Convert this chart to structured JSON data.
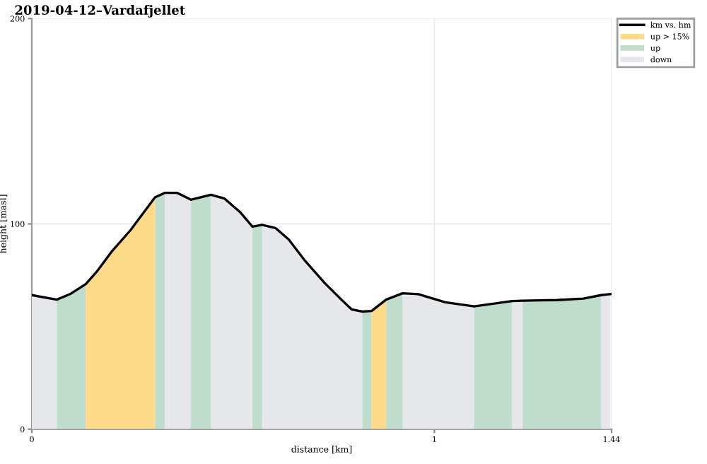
{
  "chart_data": {
    "type": "area",
    "title": "2019-04-12–Vardafjellet",
    "xlabel": "distance [km]",
    "ylabel": "height [masl]",
    "xlim": [
      0,
      1.44
    ],
    "ylim": [
      0,
      200
    ],
    "xticks": [
      0,
      1,
      1.44
    ],
    "yticks": [
      0,
      100,
      200
    ],
    "grid": true,
    "legend": "top right",
    "series": [
      {
        "name": "km vs. hm",
        "type": "line",
        "color": "#000000",
        "x": [
          0,
          0.062,
          0.095,
          0.134,
          0.162,
          0.2,
          0.245,
          0.306,
          0.33,
          0.361,
          0.395,
          0.445,
          0.478,
          0.517,
          0.548,
          0.572,
          0.605,
          0.638,
          0.677,
          0.727,
          0.769,
          0.794,
          0.821,
          0.844,
          0.88,
          0.921,
          0.96,
          1.027,
          1.099,
          1.193,
          1.219,
          1.304,
          1.37,
          1.414,
          1.437
        ],
        "values": [
          65.3,
          63.1,
          65.8,
          70.7,
          76.9,
          86.9,
          96.9,
          112.9,
          115.1,
          115.1,
          111.8,
          114.2,
          112.4,
          105.8,
          98.7,
          99.5,
          98,
          92.4,
          82.4,
          71.3,
          63.1,
          58.4,
          57.3,
          57.6,
          63.1,
          66.2,
          65.8,
          61.8,
          59.8,
          62.4,
          62.6,
          62.9,
          63.6,
          65.3,
          65.8
        ]
      },
      {
        "name": "up > 15%",
        "color": "#fdd98a",
        "x": [
          0.134,
          0.162,
          0.2,
          0.245,
          0.306,
          null,
          0.844,
          0.88
        ],
        "values": [
          70.7,
          76.9,
          86.9,
          96.9,
          112.9,
          null,
          57.6,
          63.1
        ]
      },
      {
        "name": "up",
        "color": "#bfdccc",
        "x": [
          0.062,
          0.095,
          0.134,
          null,
          0.306,
          0.33,
          null,
          0.395,
          0.445,
          null,
          0.548,
          0.572,
          null,
          0.821,
          0.844,
          null,
          0.88,
          0.921,
          null,
          1.099,
          1.193,
          null,
          1.219,
          1.304,
          1.37,
          1.414
        ],
        "values": [
          63.1,
          65.8,
          70.7,
          null,
          112.9,
          115.1,
          null,
          111.8,
          114.2,
          null,
          98.7,
          99.5,
          null,
          57.3,
          57.6,
          null,
          63.1,
          66.2,
          null,
          59.8,
          62.4,
          null,
          62.6,
          62.9,
          63.6,
          65.3
        ]
      },
      {
        "name": "down",
        "color": "#e6e7eb",
        "x": [
          0,
          0.062,
          null,
          0.33,
          0.361,
          0.395,
          null,
          0.445,
          0.478,
          0.517,
          0.548,
          null,
          0.572,
          0.605,
          0.638,
          0.677,
          0.727,
          0.769,
          0.794,
          0.821,
          null,
          0.921,
          0.96,
          1.027,
          1.099,
          null,
          1.193,
          1.219,
          null,
          1.414,
          1.437
        ],
        "values": [
          65.3,
          63.1,
          null,
          115.1,
          115.1,
          111.8,
          null,
          114.2,
          112.4,
          105.8,
          98.7,
          null,
          99.5,
          98,
          92.4,
          82.4,
          71.3,
          63.1,
          58.4,
          57.3,
          null,
          66.2,
          65.8,
          61.8,
          59.8,
          null,
          62.4,
          62.6,
          null,
          65.3,
          65.8
        ]
      }
    ]
  }
}
